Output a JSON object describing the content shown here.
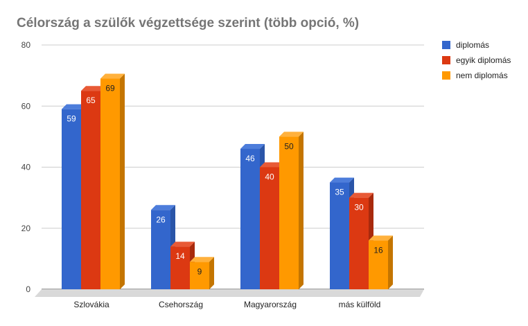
{
  "chart_data": {
    "type": "bar",
    "title": "Célország a szülők végzettsége szerint (több opció, %)",
    "categories": [
      "Szlovákia",
      "Csehország",
      "Magyarország",
      "más külföld"
    ],
    "series": [
      {
        "name": "diplomás",
        "values": [
          59,
          26,
          46,
          35
        ],
        "color": "#3366cc",
        "side": "#2a55a8",
        "top": "#4d7ddb",
        "label_color": "#ffffff"
      },
      {
        "name": "egyik diplomás",
        "values": [
          65,
          14,
          40,
          30
        ],
        "color": "#dc3912",
        "side": "#a82a0d",
        "top": "#e85a36",
        "label_color": "#ffffff"
      },
      {
        "name": "nem diplomás",
        "values": [
          69,
          9,
          50,
          16
        ],
        "color": "#ff9900",
        "side": "#c47500",
        "top": "#ffb13d",
        "label_color": "#222222"
      }
    ],
    "y_ticks": [
      0,
      20,
      40,
      60,
      80
    ],
    "ylim": [
      0,
      80
    ],
    "xlabel": "",
    "ylabel": "",
    "grid": true,
    "legend_position": "right",
    "three_d": true
  }
}
